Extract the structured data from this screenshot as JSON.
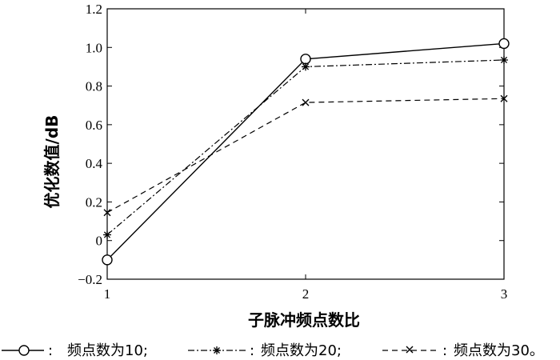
{
  "chart_data": {
    "type": "line",
    "xlabel": "子脉冲频点数比",
    "ylabel": "优化数值/dB",
    "x": [
      1,
      2,
      3
    ],
    "xticks": [
      "1",
      "2",
      "3"
    ],
    "xlim": [
      1,
      3
    ],
    "ylim": [
      -0.2,
      1.2
    ],
    "yticks": [
      "−0.2",
      "0",
      "0.2",
      "0.4",
      "0.6",
      "0.8",
      "1.0",
      "1.2"
    ],
    "grid": false,
    "legend_position": "bottom",
    "series": [
      {
        "name": "频点数为10",
        "values": [
          -0.1,
          0.94,
          1.02
        ],
        "marker": "circle",
        "line": "solid"
      },
      {
        "name": "频点数为20",
        "values": [
          0.03,
          0.9,
          0.935
        ],
        "marker": "star",
        "line": "dashdot"
      },
      {
        "name": "频点数为30",
        "values": [
          0.145,
          0.715,
          0.735
        ],
        "marker": "x",
        "line": "dashed"
      }
    ]
  },
  "legend": {
    "items": [
      {
        "sep": ":",
        "label": "频点数为10;"
      },
      {
        "sep": ":",
        "label": "频点数为20;"
      },
      {
        "sep": ":",
        "label": "频点数为30。"
      }
    ]
  }
}
